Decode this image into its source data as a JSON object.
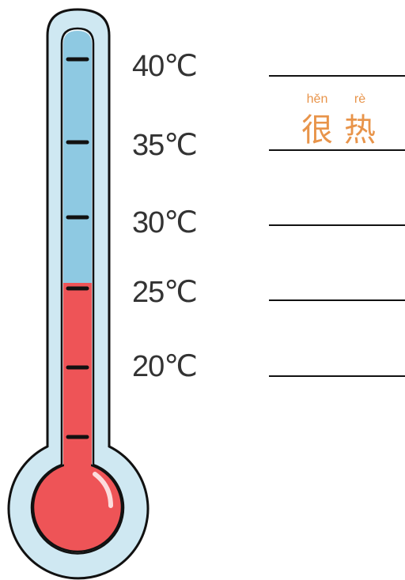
{
  "labels": [
    "40℃",
    "35℃",
    "30℃",
    "25℃",
    "20℃"
  ],
  "annotation": {
    "pinyin": [
      "hěn",
      "rè"
    ],
    "characters": [
      "很",
      "热"
    ]
  }
}
